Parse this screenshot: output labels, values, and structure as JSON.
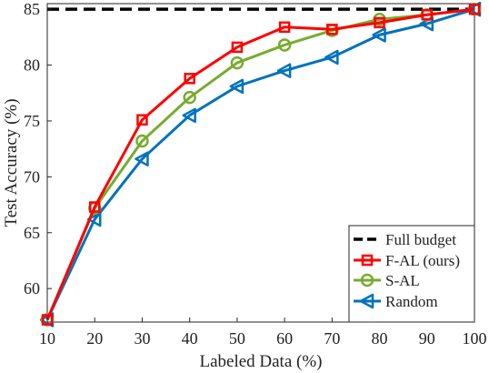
{
  "chart_data": {
    "type": "line",
    "xlabel": "Labeled Data (%)",
    "ylabel": "Test Accuracy (%)",
    "xlim": [
      10,
      100
    ],
    "ylim": [
      57,
      85.5
    ],
    "x": [
      10,
      20,
      30,
      40,
      50,
      60,
      70,
      80,
      90,
      100
    ],
    "xticks": [
      10,
      20,
      30,
      40,
      50,
      60,
      70,
      80,
      90,
      100
    ],
    "yticks": [
      60,
      65,
      70,
      75,
      80,
      85
    ],
    "grid": false,
    "legend_position": "bottom-right",
    "reference_line": {
      "name": "Full budget",
      "value": 85,
      "color": "#000000"
    },
    "series": [
      {
        "name": "F-AL (ours)",
        "color": "#ff0000",
        "marker": "square",
        "values": [
          57.2,
          67.3,
          75.1,
          78.8,
          81.6,
          83.4,
          83.2,
          83.8,
          84.5,
          85.0
        ]
      },
      {
        "name": "S-AL",
        "color": "#77ac30",
        "marker": "circle",
        "values": [
          57.2,
          67.2,
          73.2,
          77.1,
          80.2,
          81.8,
          83.1,
          84.1,
          84.5,
          85.0
        ]
      },
      {
        "name": "Random",
        "color": "#0072bd",
        "marker": "triangle-left",
        "values": [
          57.2,
          66.2,
          71.6,
          75.5,
          78.1,
          79.5,
          80.7,
          82.7,
          83.7,
          85.0
        ]
      }
    ]
  }
}
